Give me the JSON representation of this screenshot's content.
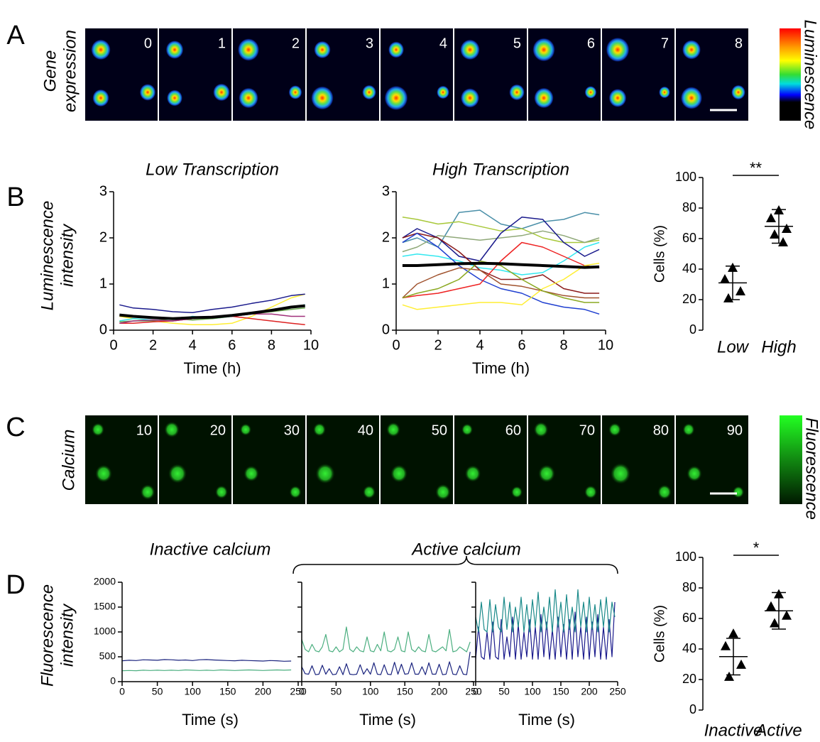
{
  "panel_a": {
    "letter": "A",
    "ylabel": [
      "Gene",
      "expression"
    ],
    "frames": [
      "0",
      "1",
      "2",
      "3",
      "4",
      "5",
      "6",
      "7",
      "8"
    ],
    "colorbar_label": "Luminescence"
  },
  "panel_b": {
    "letter": "B",
    "ylabel": [
      "Luminescence",
      "intensity"
    ],
    "charts": [
      {
        "type": "line",
        "title": "Low Transcription",
        "xlabel": "Time (h)",
        "xlim": [
          0,
          10
        ],
        "ylim": [
          0,
          3
        ],
        "xticks": [
          0,
          2,
          4,
          6,
          8,
          10
        ],
        "yticks": [
          0,
          1,
          2,
          3
        ],
        "x": [
          0.3,
          1,
          2,
          3,
          4,
          5,
          6,
          7,
          8,
          9,
          9.7
        ],
        "series": [
          {
            "color": "#ffee33",
            "linewidth": 1.5,
            "values": [
              0.3,
              0.25,
              0.2,
              0.15,
              0.12,
              0.12,
              0.15,
              0.3,
              0.5,
              0.7,
              0.78
            ]
          },
          {
            "color": "#33e0e8",
            "linewidth": 1.5,
            "values": [
              0.2,
              0.25,
              0.22,
              0.2,
              0.3,
              0.25,
              0.3,
              0.35,
              0.45,
              0.5,
              0.55
            ]
          },
          {
            "color": "#6aa84f",
            "linewidth": 1.5,
            "values": [
              0.18,
              0.2,
              0.2,
              0.25,
              0.22,
              0.25,
              0.3,
              0.35,
              0.4,
              0.45,
              0.48
            ]
          },
          {
            "color": "#dd2222",
            "linewidth": 1.5,
            "values": [
              0.15,
              0.15,
              0.18,
              0.2,
              0.25,
              0.3,
              0.3,
              0.25,
              0.2,
              0.15,
              0.12
            ]
          },
          {
            "color": "#a0307a",
            "linewidth": 1.5,
            "values": [
              0.15,
              0.2,
              0.22,
              0.2,
              0.25,
              0.28,
              0.3,
              0.35,
              0.35,
              0.3,
              0.3
            ]
          },
          {
            "color": "#1a1a8c",
            "linewidth": 1.5,
            "values": [
              0.55,
              0.48,
              0.45,
              0.4,
              0.38,
              0.45,
              0.5,
              0.58,
              0.65,
              0.75,
              0.78
            ]
          },
          {
            "color": "#000000",
            "linewidth": 4,
            "values": [
              0.33,
              0.3,
              0.27,
              0.25,
              0.27,
              0.28,
              0.32,
              0.37,
              0.43,
              0.5,
              0.53
            ]
          }
        ]
      },
      {
        "type": "line",
        "title": "High Transcription",
        "xlabel": "Time (h)",
        "xlim": [
          0,
          10
        ],
        "ylim": [
          0,
          3
        ],
        "xticks": [
          0,
          2,
          4,
          6,
          8,
          10
        ],
        "yticks": [
          0,
          1,
          2,
          3
        ],
        "x": [
          0.3,
          1,
          2,
          3,
          4,
          5,
          6,
          7,
          8,
          9,
          9.7
        ],
        "series": [
          {
            "color": "#4a8fa8",
            "linewidth": 1.5,
            "values": [
              1.9,
              2.0,
              1.8,
              2.55,
              2.6,
              2.3,
              2.2,
              2.35,
              2.4,
              2.55,
              2.5
            ]
          },
          {
            "color": "#a8c83a",
            "linewidth": 1.5,
            "values": [
              2.45,
              2.4,
              2.3,
              2.35,
              2.25,
              2.15,
              2.2,
              2.0,
              1.9,
              1.9,
              1.95
            ]
          },
          {
            "color": "#8fa878",
            "linewidth": 1.5,
            "values": [
              1.7,
              1.8,
              2.05,
              2.0,
              1.95,
              2.0,
              2.05,
              2.15,
              2.05,
              1.9,
              2.0
            ]
          },
          {
            "color": "#33e8f0",
            "linewidth": 1.5,
            "values": [
              1.6,
              1.65,
              1.6,
              1.5,
              1.35,
              1.3,
              1.2,
              1.25,
              1.5,
              1.8,
              1.9
            ]
          },
          {
            "color": "#1a1a8c",
            "linewidth": 1.5,
            "values": [
              2.0,
              2.2,
              2.0,
              1.6,
              1.5,
              2.1,
              2.45,
              2.4,
              1.9,
              1.6,
              1.75
            ]
          },
          {
            "color": "#8b1a1a",
            "linewidth": 1.5,
            "values": [
              2.0,
              2.1,
              2.0,
              1.7,
              1.3,
              1.1,
              1.1,
              1.2,
              0.9,
              0.8,
              0.8
            ]
          },
          {
            "color": "#1f3fd0",
            "linewidth": 1.5,
            "values": [
              1.9,
              2.1,
              1.8,
              1.4,
              1.1,
              0.9,
              0.8,
              0.6,
              0.5,
              0.45,
              0.35
            ]
          },
          {
            "color": "#ee2222",
            "linewidth": 1.5,
            "values": [
              0.7,
              0.75,
              0.8,
              0.9,
              1.0,
              1.5,
              1.9,
              1.8,
              1.6,
              1.4,
              1.35
            ]
          },
          {
            "color": "#a0522d",
            "linewidth": 1.5,
            "values": [
              0.7,
              1.0,
              1.2,
              1.35,
              1.3,
              1.0,
              0.95,
              0.85,
              0.75,
              0.7,
              0.7
            ]
          },
          {
            "color": "#ffee33",
            "linewidth": 1.5,
            "values": [
              0.55,
              0.45,
              0.5,
              0.55,
              0.6,
              0.6,
              0.55,
              0.9,
              1.1,
              1.4,
              1.45
            ]
          },
          {
            "color": "#8aa820",
            "linewidth": 1.5,
            "values": [
              0.7,
              0.8,
              0.9,
              1.1,
              1.5,
              1.4,
              1.1,
              0.85,
              0.7,
              0.6,
              0.6
            ]
          },
          {
            "color": "#000000",
            "linewidth": 4,
            "values": [
              1.4,
              1.4,
              1.42,
              1.44,
              1.45,
              1.44,
              1.42,
              1.4,
              1.38,
              1.36,
              1.37
            ]
          }
        ]
      },
      {
        "type": "scatter",
        "ylabel": "Cells (%)",
        "categories": [
          "Low",
          "High"
        ],
        "ylim": [
          0,
          100
        ],
        "yticks": [
          0,
          20,
          40,
          60,
          80,
          100
        ],
        "significance": "**",
        "values": [
          [
            41,
            33.5,
            25.6,
            21
          ],
          [
            78.6,
            73.5,
            66.5,
            62.8,
            57.7
          ]
        ],
        "means": [
          31,
          68
        ],
        "errors": [
          11,
          11
        ]
      }
    ]
  },
  "panel_c": {
    "letter": "C",
    "ylabel": "Calcium",
    "frames": [
      "10",
      "20",
      "30",
      "40",
      "50",
      "60",
      "70",
      "80",
      "90"
    ],
    "colorbar_label": "Fluorescence"
  },
  "panel_d": {
    "letter": "D",
    "ylabel": [
      "Fluorescence",
      "intensity"
    ],
    "brace_title": "Active calcium",
    "charts": [
      {
        "type": "line",
        "title": "Inactive calcium",
        "xlabel": "Time (s)",
        "xlim": [
          0,
          250
        ],
        "ylim": [
          0,
          2000
        ],
        "xticks": [
          0,
          50,
          100,
          150,
          200,
          250
        ],
        "yticks": [
          0,
          500,
          1000,
          1500,
          2000
        ],
        "show_ytick_labels": true,
        "x": [
          0,
          10,
          20,
          30,
          40,
          50,
          60,
          70,
          80,
          90,
          100,
          110,
          120,
          130,
          140,
          150,
          160,
          170,
          180,
          190,
          200,
          210,
          220,
          230,
          240
        ],
        "series": [
          {
            "color": "#1a237e",
            "linewidth": 1.2,
            "values": [
              420,
              430,
              425,
              440,
              435,
              430,
              445,
              440,
              430,
              435,
              425,
              440,
              445,
              435,
              430,
              425,
              420,
              430,
              425,
              420,
              415,
              425,
              420,
              410,
              415
            ]
          },
          {
            "color": "#4caf80",
            "linewidth": 1.2,
            "values": [
              220,
              225,
              220,
              230,
              225,
              230,
              225,
              230,
              225,
              235,
              230,
              225,
              230,
              225,
              235,
              230,
              225,
              230,
              235,
              230,
              225,
              230,
              235,
              230,
              235
            ]
          }
        ]
      },
      {
        "type": "line",
        "xlabel": "Time (s)",
        "xlim": [
          0,
          250
        ],
        "ylim": [
          0,
          2000
        ],
        "xticks": [
          0,
          50,
          100,
          150,
          200,
          250
        ],
        "yticks": [
          0,
          500,
          1000,
          1500,
          2000
        ],
        "show_ytick_labels": false,
        "x": [
          0,
          5,
          10,
          15,
          20,
          25,
          30,
          35,
          40,
          45,
          50,
          55,
          60,
          65,
          70,
          75,
          80,
          85,
          90,
          95,
          100,
          105,
          110,
          115,
          120,
          125,
          130,
          135,
          140,
          145,
          150,
          155,
          160,
          165,
          170,
          175,
          180,
          185,
          190,
          195,
          200,
          205,
          210,
          215,
          220,
          225,
          230,
          235,
          240,
          245
        ],
        "series": [
          {
            "color": "#4caf80",
            "linewidth": 1.2,
            "values": [
              850,
              650,
              600,
              750,
              620,
              600,
              700,
              950,
              620,
              600,
              700,
              600,
              650,
              1100,
              650,
              600,
              700,
              620,
              600,
              900,
              620,
              600,
              750,
              620,
              1000,
              620,
              600,
              650,
              900,
              620,
              600,
              1000,
              650,
              600,
              700,
              620,
              600,
              950,
              620,
              600,
              650,
              700,
              620,
              1050,
              600,
              620,
              700,
              650,
              600,
              800
            ]
          },
          {
            "color": "#1a237e",
            "linewidth": 1.2,
            "values": [
              300,
              160,
              150,
              320,
              140,
              150,
              330,
              150,
              260,
              140,
              150,
              300,
              140,
              360,
              150,
              140,
              150,
              340,
              150,
              260,
              150,
              380,
              150,
              140,
              340,
              150,
              140,
              390,
              150,
              350,
              150,
              160,
              380,
              150,
              150,
              300,
              140,
              380,
              150,
              150,
              350,
              140,
              150,
              400,
              150,
              140,
              320,
              150,
              140,
              600
            ]
          }
        ]
      },
      {
        "type": "line",
        "xlabel": "Time (s)",
        "xlim": [
          0,
          250
        ],
        "ylim": [
          0,
          2000
        ],
        "xticks": [
          0,
          50,
          100,
          150,
          200,
          250
        ],
        "yticks": [
          0,
          500,
          1000,
          1500,
          2000
        ],
        "show_ytick_labels": false,
        "x": [
          0,
          5,
          10,
          15,
          20,
          25,
          30,
          35,
          40,
          45,
          50,
          55,
          60,
          65,
          70,
          75,
          80,
          85,
          90,
          95,
          100,
          105,
          110,
          115,
          120,
          125,
          130,
          135,
          140,
          145,
          150,
          155,
          160,
          165,
          170,
          175,
          180,
          185,
          190,
          195,
          200,
          205,
          210,
          215,
          220,
          225,
          230,
          235,
          240,
          245
        ],
        "series": [
          {
            "color": "#1a1a8c",
            "linewidth": 1.2,
            "values": [
              450,
              1100,
              500,
              450,
              1000,
              450,
              1200,
              500,
              450,
              1250,
              450,
              900,
              500,
              1300,
              450,
              1150,
              450,
              1000,
              500,
              1250,
              450,
              1100,
              450,
              1350,
              500,
              1200,
              450,
              1050,
              450,
              1300,
              500,
              1150,
              450,
              1250,
              450,
              1400,
              500,
              1100,
              450,
              1300,
              450,
              1200,
              500,
              1350,
              450,
              1100,
              450,
              1250,
              500,
              1600
            ]
          },
          {
            "color": "#1a8a8a",
            "linewidth": 1.2,
            "values": [
              1300,
              1000,
              1600,
              1050,
              1000,
              1650,
              1000,
              1550,
              1100,
              1000,
              1700,
              1050,
              1600,
              1000,
              1500,
              1100,
              1700,
              1000,
              1550,
              1000,
              1650,
              1100,
              1800,
              1000,
              1500,
              1050,
              1700,
              1000,
              1850,
              1100,
              1600,
              1000,
              1750,
              1050,
              1500,
              1000,
              1850,
              1100,
              1600,
              1000,
              1700,
              1050,
              1550,
              1000,
              1650,
              1100,
              1700,
              1000,
              1600,
              1300
            ]
          }
        ]
      },
      {
        "type": "scatter",
        "ylabel": "Cells (%)",
        "categories": [
          "Inactive",
          "Active"
        ],
        "ylim": [
          0,
          100
        ],
        "yticks": [
          0,
          20,
          40,
          60,
          80,
          100
        ],
        "significance": "*",
        "values": [
          [
            50.2,
            42,
            29.8,
            21.9
          ],
          [
            76,
            68,
            62,
            57
          ]
        ],
        "means": [
          35,
          65
        ],
        "errors": [
          12,
          12
        ]
      }
    ]
  }
}
